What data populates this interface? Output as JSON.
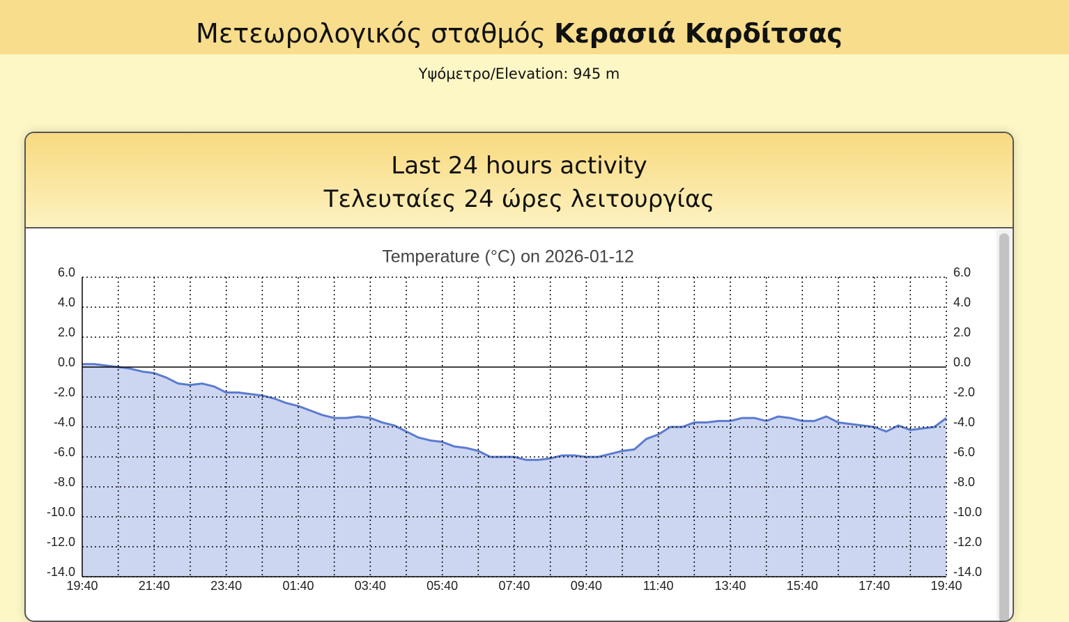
{
  "header": {
    "title_prefix": "Μετεωρολογικός σταθμός",
    "title_bold": "Κερασιά Καρδίτσας",
    "elevation": "Υψόμετρο/Elevation: 945 m"
  },
  "panel": {
    "title_en": "Last 24 hours activity",
    "title_el": "Τελευταίες 24 ώρες λειτουργίας"
  },
  "chart_data": {
    "type": "area",
    "title": "Temperature (°C) on 2026-01-12",
    "color": "#5b7bd0",
    "fill": "#cdd6f1",
    "grid": true,
    "x": [
      0,
      20,
      40,
      60,
      80,
      100,
      120,
      140,
      160,
      180,
      200,
      220,
      240,
      260,
      280,
      300,
      320,
      340,
      360,
      380,
      400,
      420,
      440,
      460,
      480,
      500,
      520,
      540,
      560,
      580,
      600,
      620,
      640,
      660,
      680,
      700,
      720,
      740,
      760,
      780,
      800,
      820,
      840,
      860,
      880,
      900,
      920,
      940,
      960,
      980,
      1000,
      1020,
      1040,
      1060,
      1080,
      1100,
      1120,
      1140,
      1160,
      1180,
      1200,
      1220,
      1240,
      1260,
      1280,
      1300,
      1320,
      1340,
      1360,
      1380,
      1400,
      1420,
      1440
    ],
    "values": [
      0.2,
      0.2,
      0.1,
      0.0,
      -0.1,
      -0.3,
      -0.4,
      -0.7,
      -1.1,
      -1.2,
      -1.1,
      -1.3,
      -1.7,
      -1.7,
      -1.8,
      -1.9,
      -2.1,
      -2.4,
      -2.6,
      -2.9,
      -3.2,
      -3.4,
      -3.4,
      -3.3,
      -3.4,
      -3.7,
      -3.9,
      -4.3,
      -4.7,
      -4.9,
      -5.0,
      -5.3,
      -5.4,
      -5.6,
      -6.0,
      -6.0,
      -6.0,
      -6.2,
      -6.2,
      -6.1,
      -5.9,
      -5.9,
      -6.0,
      -6.0,
      -5.8,
      -5.6,
      -5.5,
      -4.8,
      -4.5,
      -4.0,
      -4.0,
      -3.7,
      -3.7,
      -3.6,
      -3.6,
      -3.4,
      -3.4,
      -3.6,
      -3.3,
      -3.4,
      -3.6,
      -3.6,
      -3.3,
      -3.7,
      -3.8,
      -3.9,
      -4.0,
      -4.3,
      -3.9,
      -4.2,
      -4.1,
      -4.0,
      -3.4
    ],
    "xlim": [
      0,
      1440
    ],
    "xticks": [
      {
        "value": 0,
        "label": "19:40"
      },
      {
        "value": 60,
        "label": null
      },
      {
        "value": 120,
        "label": "21:40"
      },
      {
        "value": 180,
        "label": null
      },
      {
        "value": 240,
        "label": "23:40"
      },
      {
        "value": 300,
        "label": null
      },
      {
        "value": 360,
        "label": "01:40"
      },
      {
        "value": 420,
        "label": null
      },
      {
        "value": 480,
        "label": "03:40"
      },
      {
        "value": 540,
        "label": null
      },
      {
        "value": 600,
        "label": "05:40"
      },
      {
        "value": 660,
        "label": null
      },
      {
        "value": 720,
        "label": "07:40"
      },
      {
        "value": 780,
        "label": null
      },
      {
        "value": 840,
        "label": "09:40"
      },
      {
        "value": 900,
        "label": null
      },
      {
        "value": 960,
        "label": "11:40"
      },
      {
        "value": 1020,
        "label": null
      },
      {
        "value": 1080,
        "label": "13:40"
      },
      {
        "value": 1140,
        "label": null
      },
      {
        "value": 1200,
        "label": "15:40"
      },
      {
        "value": 1260,
        "label": null
      },
      {
        "value": 1320,
        "label": "17:40"
      },
      {
        "value": 1380,
        "label": null
      },
      {
        "value": 1440,
        "label": "19:40"
      }
    ],
    "ylim": [
      -14,
      6
    ],
    "yticks": [
      {
        "value": 6,
        "label": "6.0"
      },
      {
        "value": 4,
        "label": "4.0"
      },
      {
        "value": 2,
        "label": "2.0"
      },
      {
        "value": 0,
        "label": "0.0"
      },
      {
        "value": -2,
        "label": "-2.0"
      },
      {
        "value": -4,
        "label": "-4.0"
      },
      {
        "value": -6,
        "label": "-6.0"
      },
      {
        "value": -8,
        "label": "-8.0"
      },
      {
        "value": -10,
        "label": "-10.0"
      },
      {
        "value": -12,
        "label": "-12.0"
      },
      {
        "value": -14,
        "label": "-14.0"
      }
    ]
  }
}
